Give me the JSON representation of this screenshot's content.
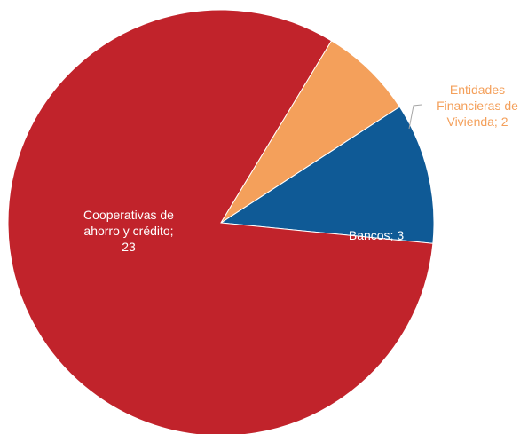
{
  "chart_data": {
    "type": "pie",
    "slices": [
      {
        "label": "Bancos",
        "value": 3,
        "color": "#0f5a96",
        "label_color": "#ffffff",
        "text_lines": [
          "Bancos; 3"
        ]
      },
      {
        "label": "Cooperativas de ahorro y crédito",
        "value": 23,
        "color": "#c1232b",
        "label_color": "#ffffff",
        "text_lines": [
          "Cooperativas de",
          "ahorro y crédito;",
          "23"
        ]
      },
      {
        "label": "Entidades Financieras de Vivienda",
        "value": 2,
        "color": "#f4a05b",
        "label_color": "#f4a05b",
        "text_lines": [
          "Entidades",
          "Financieras de",
          "Vivienda; 2"
        ]
      }
    ]
  }
}
